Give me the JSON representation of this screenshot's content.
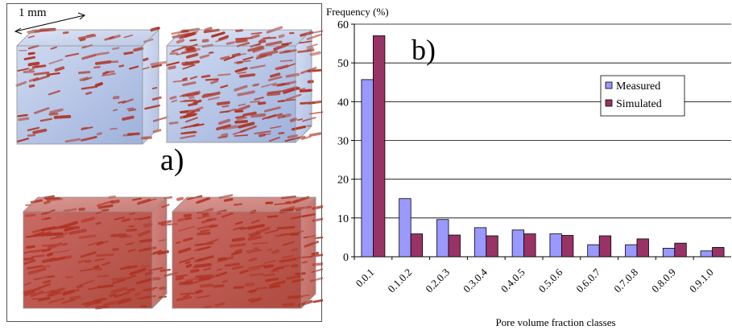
{
  "panel_a": {
    "label": "a)",
    "scale_label": "1 mm",
    "colors": {
      "pore": "#b03424",
      "matrix": "#8fa6d8",
      "edge": "#909090"
    }
  },
  "panel_b": {
    "label": "b)"
  },
  "chart_data": {
    "type": "bar",
    "title": "",
    "ylabel": "Frequency (%)",
    "xlabel": "Pore volume fraction classes",
    "categories": [
      "0.0.1",
      "0.1.0.2",
      "0.2.0.3",
      "0.3.0.4",
      "0.4.0.5",
      "0.5.0.6",
      "0.6.0.7",
      "0.7.0.8",
      "0.8.0.9",
      "0.9.1.0"
    ],
    "series": [
      {
        "name": "Measured",
        "color": "#9999ff",
        "values": [
          45.7,
          15.0,
          9.6,
          7.5,
          6.9,
          5.9,
          3.1,
          3.1,
          2.2,
          1.5
        ]
      },
      {
        "name": "Simulated",
        "color": "#993366",
        "values": [
          57.0,
          5.9,
          5.6,
          5.4,
          5.9,
          5.5,
          5.4,
          4.6,
          3.5,
          2.4
        ]
      }
    ],
    "ylim": [
      0,
      60
    ],
    "yticks": [
      0,
      10,
      20,
      30,
      40,
      50,
      60
    ],
    "grid": true,
    "legend_position": "upper-right"
  }
}
